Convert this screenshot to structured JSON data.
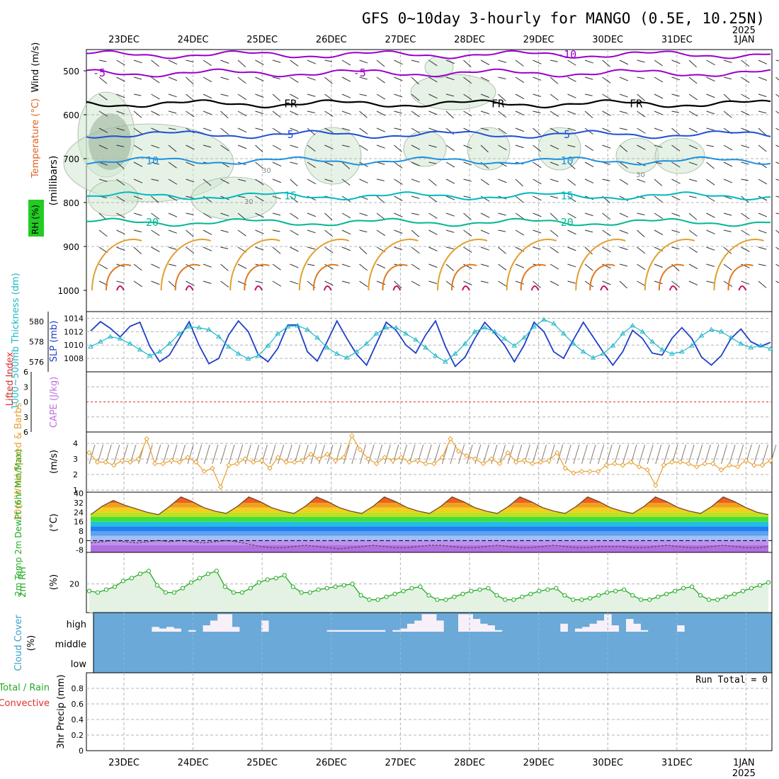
{
  "title": "GFS 0~10day 3-hourly for MANGO (0.5E, 10.25N)",
  "colors": {
    "frame": "#000000",
    "grid": "#b4b4b4",
    "temp_minus10": "#9900cc",
    "temp_minus5": "#9900cc",
    "temp_FR": "#000000",
    "temp_5": "#1f4fd6",
    "temp_10": "#1e90e0",
    "temp_15": "#00b8c0",
    "temp_20": "#00b890",
    "humidity": "#cfe8cf",
    "slp": "#1f3fc8",
    "thickness": "#20b8c8",
    "lifted_index": "#e03030",
    "wind10m": "#e8a030",
    "rh2m": "#22aa22",
    "cloud_bg": "#6aa9d8",
    "cloud_fill": "#f8f0f8"
  },
  "chart_data": [
    {
      "type": "contour",
      "id": "upper_air",
      "ylabel": "(millibars)",
      "side_labels": [
        "RH (%)",
        "Temperature (°C)",
        "Wind (m/s)"
      ],
      "y_ticks": [
        500,
        600,
        700,
        800,
        900,
        1000
      ],
      "ylim": [
        1000,
        450
      ],
      "x_ticks": [
        "23DEC",
        "24DEC",
        "25DEC",
        "26DEC",
        "27DEC",
        "28DEC",
        "29DEC",
        "30DEC",
        "31DEC",
        "1JAN"
      ],
      "x_year_label": "2025",
      "isotherms": [
        {
          "label": "-10",
          "color": "#9900cc",
          "level_mb": 463,
          "labels_at": [
            "29DEC"
          ]
        },
        {
          "label": "-5",
          "color": "#9900cc",
          "level_mb": 505,
          "labels_at": [
            "22DEC",
            "26DEC"
          ]
        },
        {
          "label": "FR",
          "color": "#000000",
          "level_mb": 575,
          "labels_at": [
            "25DEC",
            "28DEC",
            "30DEC"
          ]
        },
        {
          "label": "5",
          "color": "#1f4fd6",
          "level_mb": 645,
          "labels_at": [
            "25DEC",
            "29DEC"
          ]
        },
        {
          "label": "10",
          "color": "#1e90e0",
          "level_mb": 705,
          "labels_at": [
            "23DEC",
            "29DEC"
          ]
        },
        {
          "label": "15",
          "color": "#00b8c0",
          "level_mb": 785,
          "labels_at": [
            "25DEC",
            "29DEC"
          ]
        },
        {
          "label": "20",
          "color": "#00b890",
          "level_mb": 845,
          "labels_at": [
            "23DEC",
            "29DEC"
          ]
        }
      ],
      "humidity_contour_labels": [
        "30",
        "30",
        "30"
      ]
    },
    {
      "type": "line",
      "id": "slp_thickness",
      "left_label": "1000~500mb Thickness (dm)",
      "right_label": "SLP (mb)",
      "thickness_ticks": [
        576,
        578,
        580
      ],
      "slp_ticks": [
        1008,
        1010,
        1012,
        1014
      ],
      "slp_ylim": [
        1006,
        1015
      ],
      "thickness_ylim": [
        575,
        581
      ],
      "series": [
        {
          "id": "slp",
          "color": "#1f3fc8",
          "values": [
            1012.1,
            1013.5,
            1012.5,
            1011.2,
            1012.8,
            1013.4,
            1009.8,
            1007.5,
            1008.5,
            1011.0,
            1013.5,
            1010.0,
            1007.2,
            1008.0,
            1011.5,
            1013.6,
            1012.0,
            1008.6,
            1007.5,
            1009.5,
            1013.0,
            1013.0,
            1009.0,
            1007.6,
            1010.5,
            1013.6,
            1011.0,
            1008.6,
            1007.0,
            1010.2,
            1013.4,
            1012.2,
            1010.0,
            1008.8,
            1011.5,
            1013.6,
            1009.8,
            1006.8,
            1008.2,
            1011.0,
            1013.4,
            1011.8,
            1010.0,
            1007.5,
            1010.0,
            1013.4,
            1012.0,
            1009.0,
            1008.0,
            1010.8,
            1013.4,
            1011.2,
            1009.0,
            1007.0,
            1009.0,
            1012.2,
            1011.0,
            1008.8,
            1008.5,
            1011.0,
            1012.6,
            1011.0,
            1008.2,
            1007.0,
            1008.4,
            1011.0,
            1012.4,
            1010.5,
            1009.8,
            1010.4
          ]
        },
        {
          "id": "thickness",
          "color": "#20b8c8",
          "values": [
            577.5,
            578.0,
            578.5,
            578.3,
            577.8,
            577.2,
            576.6,
            577.0,
            577.8,
            578.8,
            579.5,
            579.4,
            579.2,
            578.5,
            577.5,
            576.8,
            576.3,
            576.6,
            577.6,
            578.8,
            579.5,
            579.6,
            579.2,
            578.4,
            577.4,
            576.8,
            576.4,
            577.0,
            577.8,
            578.8,
            579.4,
            579.4,
            578.8,
            578.2,
            577.4,
            576.6,
            576.0,
            576.8,
            577.8,
            579.0,
            579.4,
            579.0,
            578.3,
            577.6,
            578.4,
            579.5,
            580.2,
            579.8,
            578.8,
            577.8,
            577.0,
            576.4,
            576.8,
            577.6,
            578.8,
            579.6,
            579.0,
            578.0,
            577.2,
            576.8,
            577.0,
            577.6,
            578.6,
            579.2,
            579.0,
            578.4,
            577.8,
            577.4,
            577.6,
            577.3
          ]
        }
      ]
    },
    {
      "type": "line",
      "id": "lifted_index_cape",
      "left_label": "Lifted Index",
      "right_label": "CAPE (J/kg)",
      "y_ticks": [
        -6,
        -3,
        0,
        3,
        6
      ],
      "ylim": [
        6,
        -6
      ],
      "series": [
        {
          "id": "lifted_index",
          "color": "#e03030",
          "values": [
            0
          ]
        }
      ]
    },
    {
      "type": "line",
      "id": "wind10m",
      "left_label": "10m Wind Speed & Barbs",
      "unit": "(m/s)",
      "y_ticks": [
        1,
        2,
        3,
        4
      ],
      "ylim": [
        1,
        4.6
      ],
      "series": [
        {
          "id": "wind_speed",
          "color": "#e8a030",
          "values": [
            3.4,
            2.8,
            2.8,
            2.6,
            2.9,
            2.8,
            3.0,
            4.3,
            2.7,
            2.7,
            2.9,
            2.8,
            3.1,
            2.8,
            2.2,
            2.4,
            1.2,
            2.6,
            2.7,
            3.0,
            2.8,
            2.9,
            2.4,
            3.1,
            2.8,
            2.8,
            2.9,
            3.3,
            3.0,
            3.3,
            2.9,
            3.1,
            4.5,
            3.6,
            3.0,
            2.7,
            3.1,
            2.9,
            3.1,
            2.8,
            2.9,
            2.7,
            2.7,
            3.1,
            4.3,
            3.5,
            3.2,
            3.0,
            2.7,
            3.0,
            2.7,
            3.4,
            2.8,
            2.9,
            2.7,
            2.8,
            2.9,
            3.4,
            2.4,
            2.1,
            2.2,
            2.2,
            2.2,
            2.6,
            2.7,
            2.6,
            2.8,
            2.5,
            2.3,
            1.3,
            2.6,
            2.8,
            2.8,
            2.7,
            2.5,
            2.7,
            2.7,
            2.3,
            2.6,
            2.5,
            2.9,
            2.6,
            2.6,
            2.9
          ]
        }
      ]
    },
    {
      "type": "area",
      "id": "temp2m",
      "left_label": "2m Temp 2m DewPt (6hr Min/Max)",
      "unit": "(°C)",
      "y_ticks": [
        -8,
        0,
        8,
        16,
        24,
        32,
        40
      ],
      "ylim": [
        -10,
        41
      ],
      "series": [
        {
          "id": "temperature",
          "values": [
            22,
            29,
            34,
            30,
            27,
            24,
            22,
            29,
            37,
            33,
            28,
            25,
            23,
            29,
            37,
            33,
            28,
            25,
            23,
            29,
            37,
            33,
            28,
            25,
            23,
            29,
            37,
            33,
            28,
            25,
            23,
            29,
            37,
            33,
            28,
            25,
            23,
            29,
            37,
            33,
            28,
            25,
            23,
            29,
            37,
            33,
            28,
            25,
            23,
            29,
            37,
            33,
            28,
            25,
            23,
            29,
            37,
            33,
            28,
            24,
            22
          ]
        },
        {
          "id": "dewpoint",
          "values": [
            -2,
            -1,
            0,
            -1,
            -2,
            -1,
            0,
            -1,
            0,
            -1,
            -2,
            -1,
            0,
            -1,
            -3,
            -5,
            -6,
            -6,
            -5,
            -4,
            -5,
            -6,
            -7,
            -6,
            -5,
            -4,
            -5,
            -6,
            -6,
            -5,
            -4,
            -4,
            -5,
            -6,
            -6,
            -5,
            -4,
            -5,
            -6,
            -6,
            -5,
            -4,
            -5,
            -6,
            -6,
            -5,
            -5,
            -5,
            -6,
            -6,
            -5,
            -4,
            -5,
            -6,
            -6,
            -5,
            -4,
            -5,
            -6,
            -6,
            -5
          ]
        }
      ]
    },
    {
      "type": "area",
      "id": "rh2m",
      "left_label": "2m RH",
      "unit": "(%)",
      "y_ticks": [
        20
      ],
      "ylim": [
        0,
        40
      ],
      "series": [
        {
          "id": "rh",
          "color": "#22aa22",
          "values": [
            15,
            14,
            16,
            18,
            22,
            24,
            27,
            29,
            19,
            14,
            14,
            17,
            21,
            24,
            27,
            29,
            18,
            14,
            14,
            17,
            21,
            23,
            24,
            26,
            18,
            14,
            14,
            16,
            17,
            18,
            19,
            20,
            12,
            9,
            9,
            11,
            13,
            15,
            17,
            18,
            12,
            9,
            9,
            11,
            13,
            15,
            16,
            17,
            12,
            9,
            9,
            11,
            13,
            15,
            16,
            17,
            12,
            9,
            9,
            10,
            12,
            14,
            15,
            16,
            12,
            9,
            9,
            11,
            13,
            15,
            17,
            18,
            12,
            9,
            9,
            11,
            13,
            15,
            17,
            19,
            21
          ]
        }
      ]
    },
    {
      "type": "bar",
      "id": "cloud_cover",
      "left_label": "Cloud Cover",
      "unit": "(%)",
      "level_labels": [
        "high",
        "middle",
        "low"
      ],
      "series": [
        {
          "id": "high_cloud",
          "values": [
            0,
            0,
            0,
            0,
            0,
            0,
            0,
            0,
            15,
            10,
            15,
            10,
            0,
            5,
            0,
            20,
            35,
            55,
            55,
            15,
            0,
            0,
            0,
            35,
            0,
            0,
            0,
            0,
            0,
            0,
            0,
            0,
            5,
            5,
            5,
            5,
            5,
            5,
            5,
            5,
            0,
            5,
            10,
            25,
            35,
            55,
            55,
            35,
            0,
            0,
            55,
            55,
            40,
            25,
            20,
            5,
            0,
            0,
            0,
            0,
            0,
            0,
            0,
            0,
            25,
            0,
            10,
            15,
            25,
            35,
            55,
            20,
            0,
            40,
            25,
            5,
            0,
            0,
            0,
            0,
            20,
            0,
            0,
            0,
            0,
            0,
            0,
            0,
            0,
            0,
            0,
            0,
            0
          ]
        }
      ]
    },
    {
      "type": "bar",
      "id": "precip3h",
      "left_label": "3hr Precip (mm)",
      "series_labels": [
        "Total / Rain",
        "Convective"
      ],
      "y_ticks": [
        0,
        0.2,
        0.4,
        0.6,
        0.8
      ],
      "ylim": [
        0,
        1.0
      ],
      "annotation": "Run Total = 0",
      "series": [
        {
          "id": "total",
          "values": [
            0
          ]
        }
      ]
    }
  ],
  "x_axis": {
    "day_labels": [
      "23DEC",
      "24DEC",
      "25DEC",
      "26DEC",
      "27DEC",
      "28DEC",
      "29DEC",
      "30DEC",
      "31DEC",
      "1JAN"
    ],
    "year_label": "2025"
  }
}
